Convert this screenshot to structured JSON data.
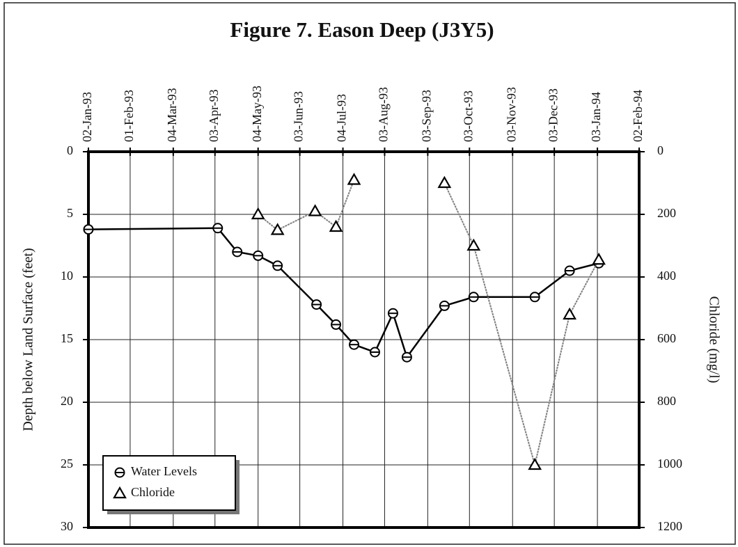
{
  "chart_data": {
    "type": "line",
    "title": "Figure 7. Eason Deep (J3Y5)",
    "y_label": "Depth below Land Surface (feet)",
    "y2_label": "Chloride (mg/l)",
    "xlim": [
      "1993-01-02",
      "1994-02-02"
    ],
    "xticks": [
      {
        "value": "1993-01-02",
        "label": "02-Jan-93"
      },
      {
        "value": "1993-02-01",
        "label": "01-Feb-93"
      },
      {
        "value": "1993-03-04",
        "label": "04-Mar-93"
      },
      {
        "value": "1993-04-03",
        "label": "03-Apr-93"
      },
      {
        "value": "1993-05-04",
        "label": "04-May-93"
      },
      {
        "value": "1993-06-03",
        "label": "03-Jun-93"
      },
      {
        "value": "1993-07-04",
        "label": "04-Jul-93"
      },
      {
        "value": "1993-08-03",
        "label": "03-Aug-93"
      },
      {
        "value": "1993-09-03",
        "label": "03-Sep-93"
      },
      {
        "value": "1993-10-03",
        "label": "03-Oct-93"
      },
      {
        "value": "1993-11-03",
        "label": "03-Nov-93"
      },
      {
        "value": "1993-12-03",
        "label": "03-Dec-93"
      },
      {
        "value": "1994-01-03",
        "label": "03-Jan-94"
      },
      {
        "value": "1994-02-02",
        "label": "02-Feb-94"
      }
    ],
    "ylim": [
      0,
      30
    ],
    "yticks": [
      0,
      5,
      10,
      15,
      20,
      25,
      30
    ],
    "y_inverted": true,
    "y2lim": [
      0,
      1200
    ],
    "y2ticks": [
      0,
      200,
      400,
      600,
      800,
      1000,
      1200
    ],
    "y2_inverted": true,
    "grid": true,
    "legend": "lower left",
    "series": [
      {
        "name": "Water Levels",
        "color": "#000000",
        "marker": "circle",
        "x": [
          "1993-01-02",
          "1993-04-05",
          "1993-04-19",
          "1993-05-04",
          "1993-05-18",
          "1993-06-15",
          "1993-06-29",
          "1993-07-12",
          "1993-07-27",
          "1993-08-09",
          "1993-08-19",
          "1993-09-15",
          "1993-10-06",
          "1993-11-19",
          "1993-12-14",
          "1994-01-04"
        ],
        "values": [
          6.2,
          6.1,
          8.0,
          8.3,
          9.1,
          12.2,
          13.8,
          15.4,
          16.0,
          12.9,
          16.4,
          12.3,
          11.6,
          11.6,
          9.5,
          8.9
        ]
      },
      {
        "name": "Chloride",
        "color": "#808080",
        "marker": "triangle",
        "axis": "y2",
        "x": [
          "1993-05-04",
          "1993-05-18",
          "1993-06-14",
          "1993-06-29",
          "1993-07-12",
          null,
          "1993-09-15",
          "1993-10-06",
          "1993-11-19",
          "1993-12-14",
          "1994-01-04"
        ],
        "values": [
          200,
          250,
          190,
          240,
          90,
          null,
          100,
          300,
          1000,
          520,
          345
        ]
      }
    ]
  }
}
